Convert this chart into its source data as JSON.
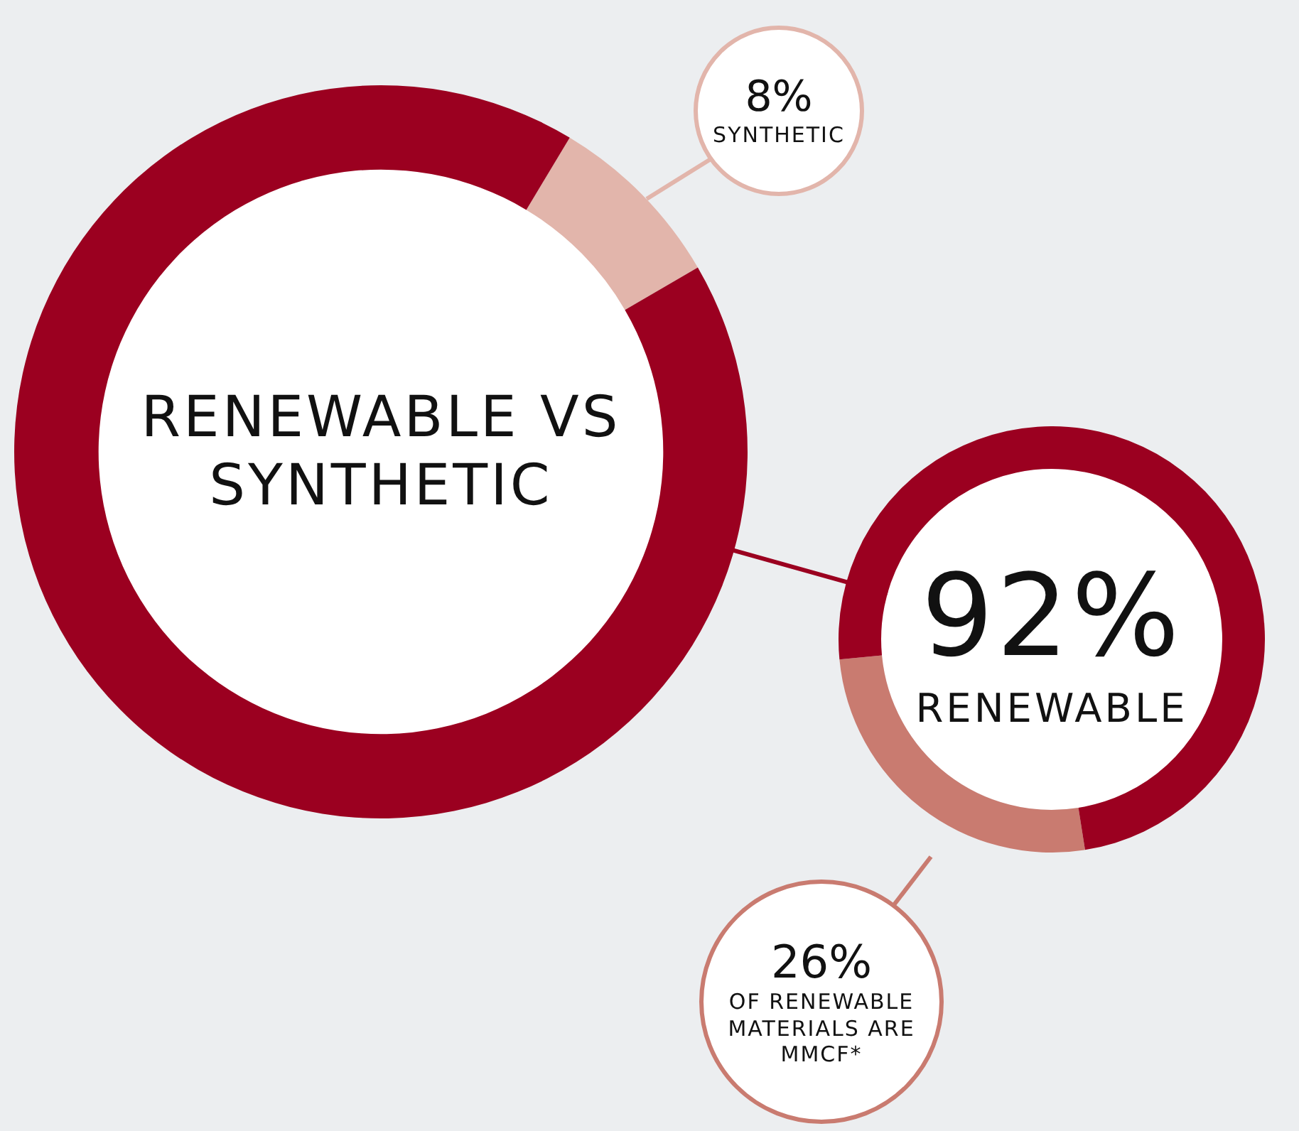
{
  "chart_data": [
    {
      "type": "donut",
      "title": "RENEWABLE VS SYNTHETIC",
      "categories": [
        "SYNTHETIC",
        null
      ],
      "values": [
        8,
        92
      ],
      "colors": [
        "#e2b5ab",
        "#9b0020"
      ],
      "value_labels": [
        "8%",
        null
      ],
      "legend": false
    },
    {
      "type": "donut",
      "title": "92%",
      "subtitle": "RENEWABLE",
      "categories": [
        "OF RENEWABLE MATERIALS ARE MMCF*",
        null
      ],
      "values": [
        26,
        74
      ],
      "colors": [
        "#c97b70",
        "#9b0020"
      ],
      "value_labels": [
        "26%",
        null
      ],
      "legend": false
    }
  ]
}
